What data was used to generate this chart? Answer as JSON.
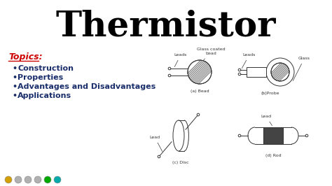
{
  "title": "Thermistor",
  "title_fontsize": 36,
  "title_color": "#000000",
  "bg_color": "#ffffff",
  "topics_label": "Topics:",
  "topics_color": "#cc0000",
  "topics_fontsize": 9,
  "bullet_items": [
    "Construction",
    "Properties",
    "Advantages and Disadvantages",
    "Applications"
  ],
  "bullet_color": "#1a2e6b",
  "bullet_fontsize": 8,
  "diagram_labels": {
    "bead_leads": "Leads",
    "bead_glass": "Glass coated\nbead",
    "bead_caption": "(a) Bead",
    "probe_leads": "Leads",
    "probe_glass": "Glass",
    "probe_caption": "(b)Probe",
    "disc_lead": "Lead",
    "disc_caption": "(c) Disc",
    "rod_lead": "Lead",
    "rod_caption": "(d) Rod"
  },
  "label_fontsize": 4.5,
  "caption_fontsize": 4.5,
  "icon_colors": [
    "#d4a000",
    "#b0b0b0",
    "#b0b0b0",
    "#b0b0b0",
    "#00aa00",
    "#00aaaa"
  ]
}
